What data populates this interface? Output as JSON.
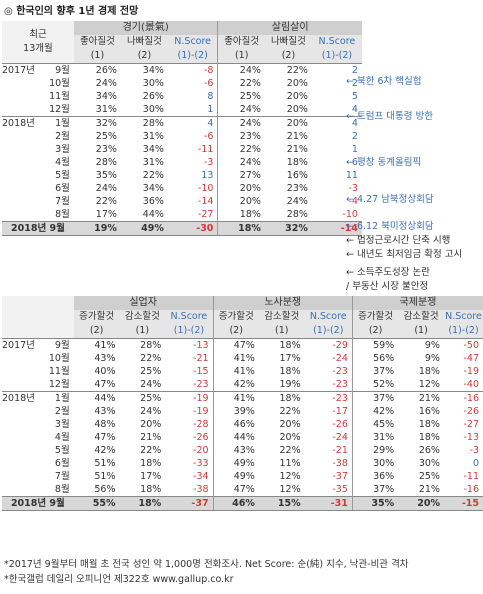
{
  "title": "◎  한국인의 향후 1년 경제 전망",
  "table1": {
    "row_header": "최근\n13개월",
    "groups": [
      "경기(景氣)",
      "살림살이"
    ],
    "sub_headers": [
      {
        "label": "좋아질것",
        "sub": "(1)"
      },
      {
        "label": "나빠질것",
        "sub": "(2)"
      },
      {
        "label": "N.Score",
        "sub": "(1)-(2)"
      },
      {
        "label": "좋아질것",
        "sub": "(1)"
      },
      {
        "label": "나빠질것",
        "sub": "(2)"
      },
      {
        "label": "N.Score",
        "sub": "(1)-(2)"
      }
    ],
    "rows": [
      {
        "year": "2017년",
        "month": "9월",
        "v": [
          "26%",
          "34%",
          "-8",
          "24%",
          "22%",
          "2"
        ]
      },
      {
        "year": "",
        "month": "10월",
        "v": [
          "24%",
          "30%",
          "-6",
          "22%",
          "20%",
          "2"
        ]
      },
      {
        "year": "",
        "month": "11월",
        "v": [
          "34%",
          "26%",
          "8",
          "25%",
          "20%",
          "5"
        ]
      },
      {
        "year": "",
        "month": "12월",
        "v": [
          "31%",
          "30%",
          "1",
          "24%",
          "20%",
          "4"
        ]
      },
      {
        "year": "2018년",
        "month": "1월",
        "v": [
          "32%",
          "28%",
          "4",
          "24%",
          "20%",
          "4"
        ]
      },
      {
        "year": "",
        "month": "2월",
        "v": [
          "25%",
          "31%",
          "-6",
          "23%",
          "21%",
          "2"
        ]
      },
      {
        "year": "",
        "month": "3월",
        "v": [
          "23%",
          "34%",
          "-11",
          "22%",
          "21%",
          "1"
        ]
      },
      {
        "year": "",
        "month": "4월",
        "v": [
          "28%",
          "31%",
          "-3",
          "24%",
          "18%",
          "6"
        ]
      },
      {
        "year": "",
        "month": "5월",
        "v": [
          "35%",
          "22%",
          "13",
          "27%",
          "16%",
          "11"
        ]
      },
      {
        "year": "",
        "month": "6월",
        "v": [
          "24%",
          "34%",
          "-10",
          "20%",
          "23%",
          "-3"
        ]
      },
      {
        "year": "",
        "month": "7월",
        "v": [
          "22%",
          "36%",
          "-14",
          "20%",
          "24%",
          "-4"
        ]
      },
      {
        "year": "",
        "month": "8월",
        "v": [
          "17%",
          "44%",
          "-27",
          "18%",
          "28%",
          "-10"
        ]
      }
    ],
    "last_row": {
      "label": "2018년 9월",
      "v": [
        "19%",
        "49%",
        "-30",
        "18%",
        "32%",
        "-14"
      ]
    }
  },
  "annotations": [
    {
      "text": "← 북한 6차 핵실험"
    },
    {
      "text": "← 트럼프 대통령 방한"
    },
    {
      "text": "← 평창 동계올림픽"
    },
    {
      "text": "← 4.27 남북정상회담"
    },
    {
      "text": "← 6.12 북미정상회담"
    },
    {
      "text": "← 법정근로시간 단축 시행"
    },
    {
      "text": "← 내년도 최저임금 확정 고시"
    },
    {
      "text": "← 소득주도성장 논란"
    },
    {
      "text": "/ 부동산 시장 불안정"
    }
  ],
  "table2": {
    "groups": [
      "실업자",
      "노사분쟁",
      "국제분쟁"
    ],
    "sub_headers": [
      {
        "label": "증가할것",
        "sub": "(2)"
      },
      {
        "label": "감소할것",
        "sub": "(1)"
      },
      {
        "label": "N.Score",
        "sub": "(1)-(2)"
      },
      {
        "label": "증가할것",
        "sub": "(2)"
      },
      {
        "label": "감소할것",
        "sub": "(1)"
      },
      {
        "label": "N.Score",
        "sub": "(1)-(2)"
      },
      {
        "label": "증가할것",
        "sub": "(2)"
      },
      {
        "label": "감소할것",
        "sub": "(1)"
      },
      {
        "label": "N.Score",
        "sub": "(1)-(2)"
      }
    ],
    "rows": [
      {
        "year": "2017년",
        "month": "9월",
        "v": [
          "41%",
          "28%",
          "-13",
          "47%",
          "18%",
          "-29",
          "59%",
          "9%",
          "-50"
        ]
      },
      {
        "year": "",
        "month": "10월",
        "v": [
          "43%",
          "22%",
          "-21",
          "41%",
          "17%",
          "-24",
          "56%",
          "9%",
          "-47"
        ]
      },
      {
        "year": "",
        "month": "11월",
        "v": [
          "40%",
          "25%",
          "-15",
          "41%",
          "18%",
          "-23",
          "37%",
          "18%",
          "-19"
        ]
      },
      {
        "year": "",
        "month": "12월",
        "v": [
          "47%",
          "24%",
          "-23",
          "42%",
          "19%",
          "-23",
          "52%",
          "12%",
          "-40"
        ]
      },
      {
        "year": "2018년",
        "month": "1월",
        "v": [
          "44%",
          "25%",
          "-19",
          "41%",
          "18%",
          "-23",
          "37%",
          "21%",
          "-16"
        ]
      },
      {
        "year": "",
        "month": "2월",
        "v": [
          "43%",
          "24%",
          "-19",
          "39%",
          "22%",
          "-17",
          "42%",
          "16%",
          "-26"
        ]
      },
      {
        "year": "",
        "month": "3월",
        "v": [
          "48%",
          "20%",
          "-28",
          "46%",
          "20%",
          "-26",
          "45%",
          "18%",
          "-27"
        ]
      },
      {
        "year": "",
        "month": "4월",
        "v": [
          "47%",
          "21%",
          "-26",
          "44%",
          "20%",
          "-24",
          "31%",
          "18%",
          "-13"
        ]
      },
      {
        "year": "",
        "month": "5월",
        "v": [
          "42%",
          "22%",
          "-20",
          "43%",
          "22%",
          "-21",
          "29%",
          "26%",
          "-3"
        ]
      },
      {
        "year": "",
        "month": "6월",
        "v": [
          "51%",
          "18%",
          "-33",
          "49%",
          "11%",
          "-38",
          "30%",
          "30%",
          "0"
        ]
      },
      {
        "year": "",
        "month": "7월",
        "v": [
          "51%",
          "17%",
          "-34",
          "49%",
          "12%",
          "-37",
          "36%",
          "25%",
          "-11"
        ]
      },
      {
        "year": "",
        "month": "8월",
        "v": [
          "56%",
          "18%",
          "-38",
          "47%",
          "12%",
          "-35",
          "37%",
          "21%",
          "-16"
        ]
      }
    ],
    "last_row": {
      "label": "2018년 9월",
      "v": [
        "55%",
        "18%",
        "-37",
        "46%",
        "15%",
        "-31",
        "35%",
        "20%",
        "-15"
      ]
    }
  },
  "footnotes": [
    "*2017년 9월부터 매월 초 전국 성인 약 1,000명 전화조사. Net Score: 순(純) 지수, 낙관-비관 격차",
    "*한국갤럽 데일리 오피니언 제322호 www.gallup.co.kr"
  ],
  "colors": {
    "negative": "#d23a3a",
    "net_score": "#3b6fb6",
    "header": "#cfcfcf"
  }
}
